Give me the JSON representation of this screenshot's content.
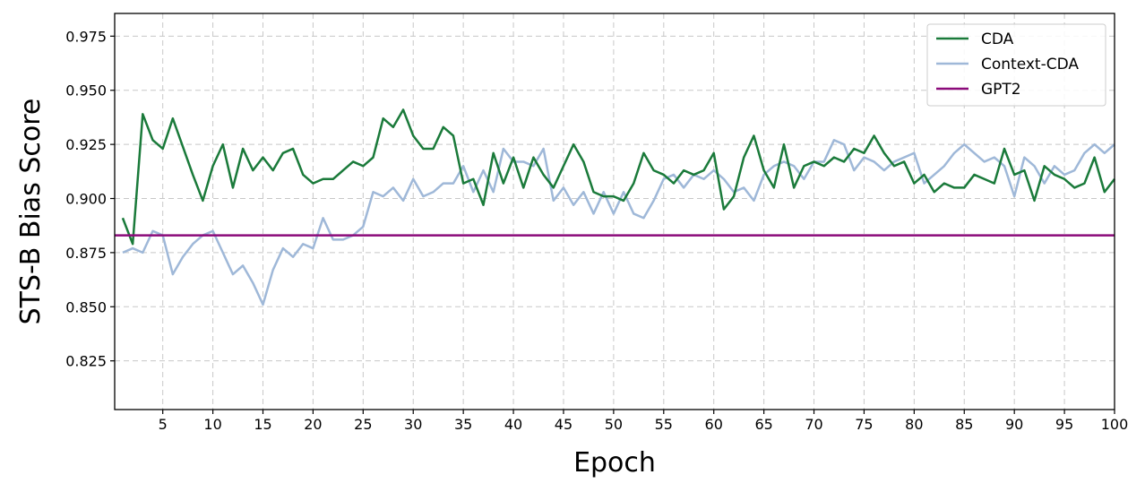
{
  "chart_data": {
    "type": "line",
    "title": "",
    "xlabel": "Epoch",
    "ylabel": "STS-B Bias Score",
    "xlim": [
      0.2,
      100
    ],
    "ylim": [
      0.8025,
      0.9855
    ],
    "x_ticks": [
      5,
      10,
      15,
      20,
      25,
      30,
      35,
      40,
      45,
      50,
      55,
      60,
      65,
      70,
      75,
      80,
      85,
      90,
      95,
      100
    ],
    "y_ticks": [
      0.825,
      0.85,
      0.875,
      0.9,
      0.925,
      0.95,
      0.975
    ],
    "y_tick_labels": [
      "0.825",
      "0.850",
      "0.875",
      "0.900",
      "0.925",
      "0.950",
      "0.975"
    ],
    "grid": true,
    "legend_position": "top-right",
    "x": [
      1,
      2,
      3,
      4,
      5,
      6,
      7,
      8,
      9,
      10,
      11,
      12,
      13,
      14,
      15,
      16,
      17,
      18,
      19,
      20,
      21,
      22,
      23,
      24,
      25,
      26,
      27,
      28,
      29,
      30,
      31,
      32,
      33,
      34,
      35,
      36,
      37,
      38,
      39,
      40,
      41,
      42,
      43,
      44,
      45,
      46,
      47,
      48,
      49,
      50,
      51,
      52,
      53,
      54,
      55,
      56,
      57,
      58,
      59,
      60,
      61,
      62,
      63,
      64,
      65,
      66,
      67,
      68,
      69,
      70,
      71,
      72,
      73,
      74,
      75,
      76,
      77,
      78,
      79,
      80,
      81,
      82,
      83,
      84,
      85,
      86,
      87,
      88,
      89,
      90,
      91,
      92,
      93,
      94,
      95,
      96,
      97,
      98,
      99,
      100
    ],
    "series": [
      {
        "name": "CDA",
        "color": "#1a7a3a",
        "values": [
          0.891,
          0.879,
          0.939,
          0.927,
          0.923,
          0.937,
          0.924,
          0.911,
          0.899,
          0.915,
          0.925,
          0.905,
          0.923,
          0.913,
          0.919,
          0.913,
          0.921,
          0.923,
          0.911,
          0.907,
          0.909,
          0.909,
          0.913,
          0.917,
          0.915,
          0.919,
          0.937,
          0.933,
          0.941,
          0.929,
          0.923,
          0.923,
          0.933,
          0.929,
          0.907,
          0.909,
          0.897,
          0.921,
          0.907,
          0.919,
          0.905,
          0.919,
          0.911,
          0.905,
          0.915,
          0.925,
          0.917,
          0.903,
          0.901,
          0.901,
          0.899,
          0.907,
          0.921,
          0.913,
          0.911,
          0.907,
          0.913,
          0.911,
          0.913,
          0.921,
          0.895,
          0.901,
          0.919,
          0.929,
          0.913,
          0.905,
          0.925,
          0.905,
          0.915,
          0.917,
          0.915,
          0.919,
          0.917,
          0.923,
          0.921,
          0.929,
          0.921,
          0.915,
          0.917,
          0.907,
          0.911,
          0.903,
          0.907,
          0.905,
          0.905,
          0.911,
          0.909,
          0.907,
          0.923,
          0.911,
          0.913,
          0.899,
          0.915,
          0.911,
          0.909,
          0.905,
          0.907,
          0.919,
          0.903,
          0.909
        ]
      },
      {
        "name": "Context-CDA",
        "color": "#9fb8d8",
        "values": [
          0.875,
          0.877,
          0.875,
          0.885,
          0.883,
          0.865,
          0.873,
          0.879,
          0.883,
          0.885,
          0.875,
          0.865,
          0.869,
          0.861,
          0.851,
          0.867,
          0.877,
          0.873,
          0.879,
          0.877,
          0.891,
          0.881,
          0.881,
          0.883,
          0.887,
          0.903,
          0.901,
          0.905,
          0.899,
          0.909,
          0.901,
          0.903,
          0.907,
          0.907,
          0.915,
          0.903,
          0.913,
          0.903,
          0.923,
          0.917,
          0.917,
          0.915,
          0.923,
          0.899,
          0.905,
          0.897,
          0.903,
          0.893,
          0.903,
          0.893,
          0.903,
          0.893,
          0.891,
          0.899,
          0.909,
          0.911,
          0.905,
          0.911,
          0.909,
          0.913,
          0.909,
          0.903,
          0.905,
          0.899,
          0.911,
          0.915,
          0.917,
          0.915,
          0.909,
          0.917,
          0.917,
          0.927,
          0.925,
          0.913,
          0.919,
          0.917,
          0.913,
          0.917,
          0.919,
          0.921,
          0.907,
          0.911,
          0.915,
          0.921,
          0.925,
          0.921,
          0.917,
          0.919,
          0.915,
          0.901,
          0.919,
          0.915,
          0.907,
          0.915,
          0.911,
          0.913,
          0.921,
          0.925,
          0.921,
          0.925
        ]
      },
      {
        "name": "GPT2",
        "color": "#8b0a7a",
        "constant": 0.883
      }
    ]
  }
}
